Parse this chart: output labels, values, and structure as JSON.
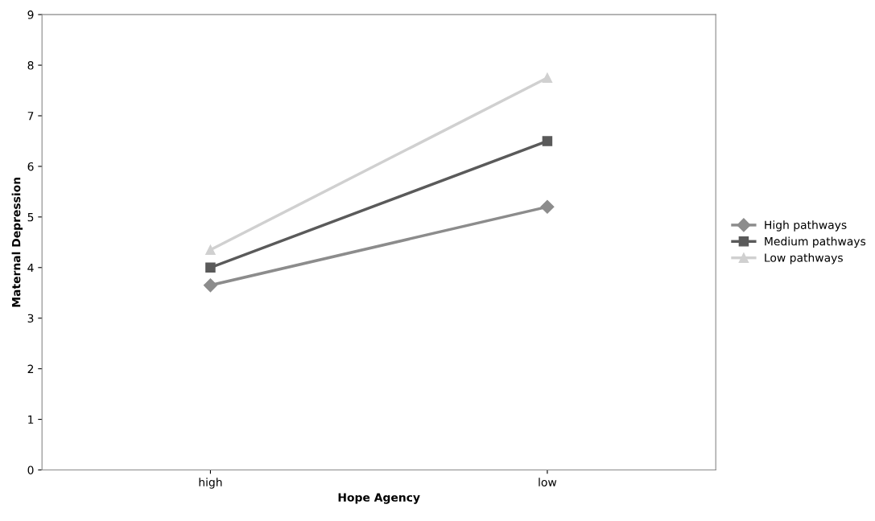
{
  "chart_data": {
    "type": "line",
    "xlabel": "Hope Agency",
    "ylabel": "Maternal Depression",
    "categories": [
      "high",
      "low"
    ],
    "series": [
      {
        "name": "High pathways",
        "color": "#8c8c8c",
        "marker": "diamond",
        "values": [
          3.65,
          5.2
        ]
      },
      {
        "name": "Medium pathways",
        "color": "#5a5a5a",
        "marker": "square",
        "values": [
          4.0,
          6.5
        ]
      },
      {
        "name": "Low pathways",
        "color": "#d0d0d0",
        "marker": "triangle",
        "values": [
          4.35,
          7.75
        ]
      }
    ],
    "ylim": [
      0,
      9
    ],
    "yticks": [
      0,
      1,
      2,
      3,
      4,
      5,
      6,
      7,
      8,
      9
    ],
    "legend": "right"
  }
}
